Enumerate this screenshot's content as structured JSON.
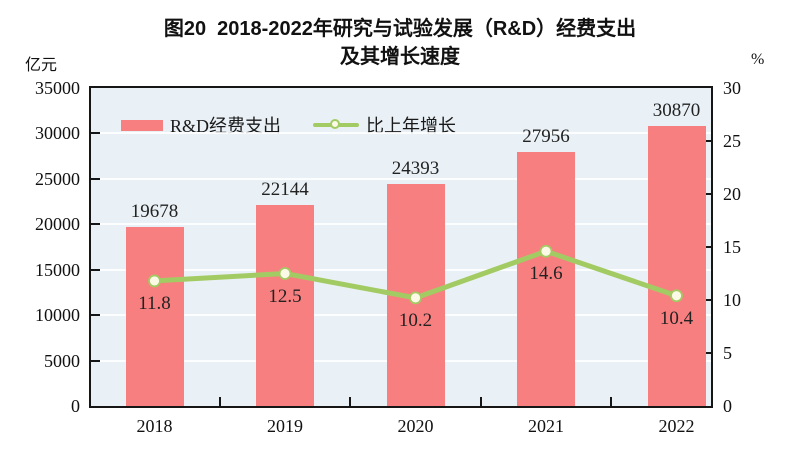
{
  "title": {
    "line1": "图20  2018-2022年研究与试验发展（R&D）经费支出",
    "line2": "及其增长速度"
  },
  "left_axis_unit": "亿元",
  "right_axis_unit": "%",
  "legend": [
    {
      "label": "R&D经费支出",
      "type": "bar"
    },
    {
      "label": "比上年增长",
      "type": "line"
    }
  ],
  "colors": {
    "bar": "#F87F7F",
    "line": "#A3CB64",
    "marker_fill": "#FCFAE6",
    "plot_bg": "#E9F1F6",
    "axis": "#161616",
    "grid": "#F8FBFC",
    "text": "#222222"
  },
  "chart_data": {
    "type": "bar",
    "title": "图20 2018-2022年研究与试验发展（R&D）经费支出及其增长速度",
    "categories": [
      "2018",
      "2019",
      "2020",
      "2021",
      "2022"
    ],
    "series": [
      {
        "name": "R&D经费支出",
        "type": "bar",
        "axis": "left",
        "values": [
          19678,
          22144,
          24393,
          27956,
          30870
        ]
      },
      {
        "name": "比上年增长",
        "type": "line",
        "axis": "right",
        "values": [
          11.8,
          12.5,
          10.2,
          14.6,
          10.4
        ]
      }
    ],
    "left_axis": {
      "unit": "亿元",
      "min": 0,
      "max": 35000,
      "step": 5000,
      "ticks": [
        0,
        5000,
        10000,
        15000,
        20000,
        25000,
        30000,
        35000
      ]
    },
    "right_axis": {
      "unit": "%",
      "min": 0,
      "max": 30,
      "step": 5,
      "ticks": [
        0,
        5,
        10,
        15,
        20,
        25,
        30
      ]
    },
    "grid": true,
    "legend_position": "top-left-inside"
  }
}
